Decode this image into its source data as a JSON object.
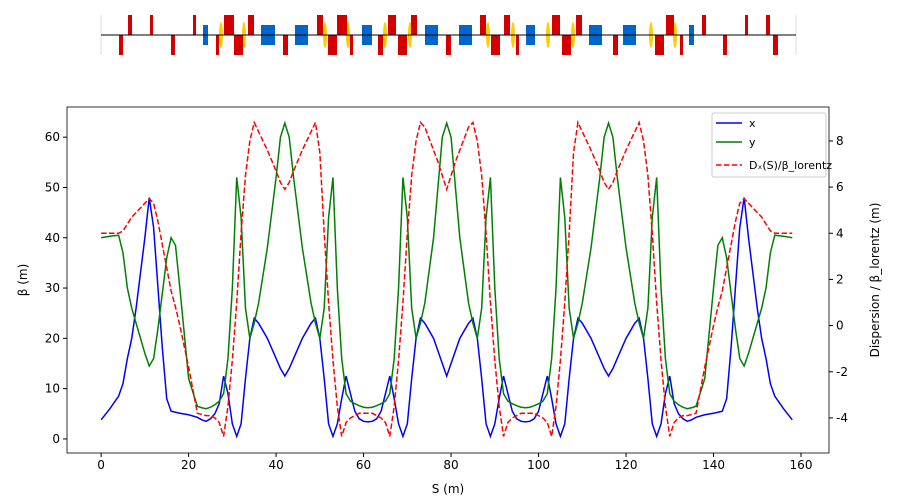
{
  "chart_data": {
    "type": "line",
    "x_label": "S (m)",
    "y_label": "β (m)",
    "y2_label": "Dispersion / β_lorentz (m)",
    "xlim": [
      -7.8,
      166.4
    ],
    "xticks": [
      0,
      20,
      40,
      60,
      80,
      100,
      120,
      140,
      160
    ],
    "ylim": [
      -2.8,
      66
    ],
    "yticks": [
      0,
      10,
      20,
      30,
      40,
      50,
      60
    ],
    "y2lim": [
      -5.52,
      9.47
    ],
    "y2ticks": [
      -4,
      -2,
      0,
      2,
      4,
      6,
      8
    ],
    "legend": "upper right",
    "x": [
      0,
      2,
      4,
      5,
      6,
      7,
      8,
      9,
      10,
      11,
      12,
      13,
      14,
      15,
      16,
      17,
      18,
      20,
      22,
      23,
      24,
      25,
      26,
      27,
      28,
      29,
      30,
      31,
      32,
      33,
      34,
      35,
      36,
      38,
      40,
      41,
      42,
      43,
      44,
      46,
      48,
      49,
      50,
      51,
      52,
      53,
      54,
      55,
      56,
      57,
      58,
      59,
      60,
      61,
      62,
      63,
      64,
      65,
      66,
      67,
      68,
      69,
      70,
      71,
      72,
      73,
      74,
      76,
      77,
      78,
      79,
      80,
      81,
      82,
      84,
      85,
      86,
      87,
      88,
      89,
      90,
      91,
      92,
      93,
      94,
      95,
      96,
      97,
      98,
      99,
      100,
      101,
      102,
      103,
      104,
      105,
      106,
      107,
      108,
      109,
      110,
      112,
      114,
      115,
      116,
      117,
      118,
      120,
      122,
      123,
      124,
      125,
      126,
      127,
      128,
      129,
      130,
      131,
      132,
      133,
      134,
      135,
      136,
      138,
      140,
      141,
      142,
      143,
      144,
      145,
      146,
      147,
      148,
      149,
      150,
      151,
      152,
      153,
      154,
      156,
      158
    ],
    "series": [
      {
        "name": "x",
        "color": "#0000ff",
        "dash": false,
        "axis": "y",
        "values": [
          3.8,
          6,
          8.5,
          11,
          16,
          20,
          26,
          33,
          40,
          48,
          42,
          30,
          18,
          8,
          5.5,
          5.3,
          5.1,
          4.8,
          4.3,
          3.8,
          3.5,
          4,
          5,
          7,
          12.5,
          9,
          3,
          0.5,
          3,
          12,
          20,
          24,
          23,
          20,
          16,
          14,
          12.5,
          14,
          16,
          20,
          23,
          24,
          20,
          12,
          3,
          0.5,
          3,
          8,
          12.5,
          9,
          5.5,
          4,
          3.5,
          3.4,
          3.5,
          4,
          5.5,
          9,
          12.5,
          8,
          3,
          0.5,
          3,
          12,
          20,
          24,
          23,
          20,
          17.5,
          15,
          12.5,
          15,
          17.5,
          20,
          23,
          24,
          20,
          12,
          3,
          0.5,
          3,
          8,
          12.5,
          9,
          5.5,
          4,
          3.5,
          3.4,
          3.5,
          4,
          5.5,
          9,
          12.5,
          8,
          3,
          0.5,
          3,
          12,
          20,
          24,
          23,
          20,
          16,
          14,
          12.5,
          14,
          16,
          20,
          23,
          24,
          20,
          12,
          3,
          0.5,
          3,
          9,
          12.5,
          7,
          5,
          4,
          3.5,
          3.8,
          4.3,
          4.8,
          5.1,
          5.3,
          5.5,
          8,
          18,
          30,
          42,
          48,
          40,
          33,
          26,
          20,
          16,
          11,
          8.5,
          6,
          3.8
        ]
      },
      {
        "name": "y",
        "color": "#008000",
        "dash": false,
        "axis": "y",
        "values": [
          40,
          40.3,
          40.5,
          37,
          30,
          26,
          23,
          20,
          17,
          14.5,
          16,
          22,
          29,
          36,
          40,
          38.5,
          30,
          12,
          6.5,
          6.2,
          6,
          6.3,
          6.8,
          7.5,
          9,
          16,
          30,
          52,
          44,
          26,
          20,
          23,
          27,
          38,
          52,
          60,
          62.8,
          60,
          52,
          38,
          27,
          23,
          20,
          26,
          44,
          52,
          30,
          16,
          9,
          7.5,
          7,
          6.6,
          6.3,
          6.2,
          6.3,
          6.6,
          7,
          7.5,
          9,
          16,
          30,
          52,
          44,
          26,
          20,
          23,
          27,
          40,
          50,
          60,
          62.8,
          60,
          50,
          40,
          27,
          23,
          20,
          26,
          44,
          52,
          30,
          16,
          9,
          7.5,
          7,
          6.6,
          6.3,
          6.2,
          6.3,
          6.6,
          7,
          7.5,
          9,
          16,
          30,
          52,
          44,
          26,
          20,
          23,
          27,
          38,
          52,
          60,
          62.8,
          60,
          52,
          38,
          27,
          23,
          20,
          26,
          44,
          52,
          30,
          16,
          9,
          7.5,
          6.8,
          6.3,
          6,
          6.2,
          6.5,
          12,
          30,
          38.5,
          40,
          36,
          29,
          22,
          16,
          14.5,
          17,
          20,
          23,
          26,
          30,
          37,
          40.5,
          40.3,
          40
        ]
      },
      {
        "name": "Dₓ(S)/β_lorentz",
        "color": "#ff0000",
        "dash": true,
        "axis": "y2",
        "values": [
          4,
          4,
          4,
          4.1,
          4.4,
          4.7,
          4.9,
          5.1,
          5.3,
          5.5,
          5.3,
          4.5,
          3.5,
          2.5,
          1.5,
          0.8,
          0,
          -1.8,
          -3.8,
          -3.85,
          -3.9,
          -3.9,
          -4,
          -4.2,
          -4.8,
          -3.5,
          -1.5,
          1,
          4,
          6.5,
          8,
          8.8,
          8.4,
          7.6,
          6.7,
          6.2,
          5.9,
          6.2,
          6.7,
          7.6,
          8.4,
          8.8,
          7.5,
          4,
          1,
          -1.5,
          -3.5,
          -4.8,
          -4.2,
          -4,
          -3.9,
          -3.8,
          -3.8,
          -3.8,
          -3.8,
          -3.9,
          -4,
          -4.2,
          -4.8,
          -3.5,
          -1.5,
          1,
          4,
          6.5,
          8,
          8.8,
          8.6,
          7.6,
          7.1,
          6.5,
          5.9,
          6.5,
          7.1,
          7.6,
          8.6,
          8.8,
          8,
          6.5,
          4,
          1,
          -1.5,
          -3.5,
          -4.8,
          -4.2,
          -4,
          -3.9,
          -3.8,
          -3.8,
          -3.8,
          -3.8,
          -3.9,
          -4,
          -4.2,
          -4.8,
          -3.5,
          -1.5,
          1,
          4,
          7.5,
          8.8,
          8.4,
          7.6,
          6.7,
          6.2,
          5.9,
          6.2,
          6.7,
          7.6,
          8.4,
          8.8,
          8,
          6.5,
          4,
          1,
          -1.5,
          -3.5,
          -4.8,
          -4.2,
          -4,
          -3.9,
          -3.9,
          -3.85,
          -3.8,
          -1.8,
          0,
          0.8,
          1.5,
          2.5,
          3.5,
          4.5,
          5.3,
          5.5,
          5.3,
          5.1,
          4.9,
          4.7,
          4.4,
          4.1,
          4,
          4,
          4
        ]
      }
    ]
  }
}
